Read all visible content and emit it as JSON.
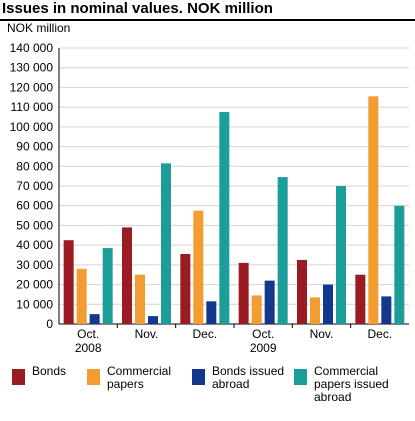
{
  "chart_data": {
    "type": "bar",
    "title": "Issues in nominal values. NOK million",
    "ylabel": "NOK million",
    "ylim": [
      0,
      140000
    ],
    "yticks": [
      "0",
      "10 000",
      "20 000",
      "30 000",
      "40 000",
      "50 000",
      "60 000",
      "70 000",
      "80 000",
      "90 000",
      "100 000",
      "110 000",
      "120 000",
      "130 000",
      "140 000"
    ],
    "categories": [
      "Oct.\n2008",
      "Nov.",
      "Dec.",
      "Oct.\n2009",
      "Nov.",
      "Dec."
    ],
    "grid": true,
    "legend_position": "bottom",
    "series": [
      {
        "name": "Bonds",
        "color": "#9b1b22",
        "values": [
          42500,
          49000,
          35500,
          31000,
          32500,
          25000
        ]
      },
      {
        "name": "Commercial papers",
        "color": "#f39c31",
        "values": [
          28000,
          25000,
          57500,
          14500,
          13500,
          115500
        ]
      },
      {
        "name": "Bonds issued abroad",
        "color": "#13378c",
        "values": [
          5000,
          4000,
          11500,
          22000,
          20000,
          14000
        ]
      },
      {
        "name": "Commercial papers issued abroad",
        "color": "#1d9d9a",
        "values": [
          38500,
          81500,
          107500,
          74500,
          70000,
          60000
        ]
      }
    ]
  },
  "legend": [
    {
      "label": "Bonds",
      "color": "#9b1b22"
    },
    {
      "label": "Commercial papers",
      "color": "#f39c31"
    },
    {
      "label": "Bonds issued abroad",
      "color": "#13378c"
    },
    {
      "label": "Commercial papers issued abroad",
      "color": "#1d9d9a"
    }
  ]
}
